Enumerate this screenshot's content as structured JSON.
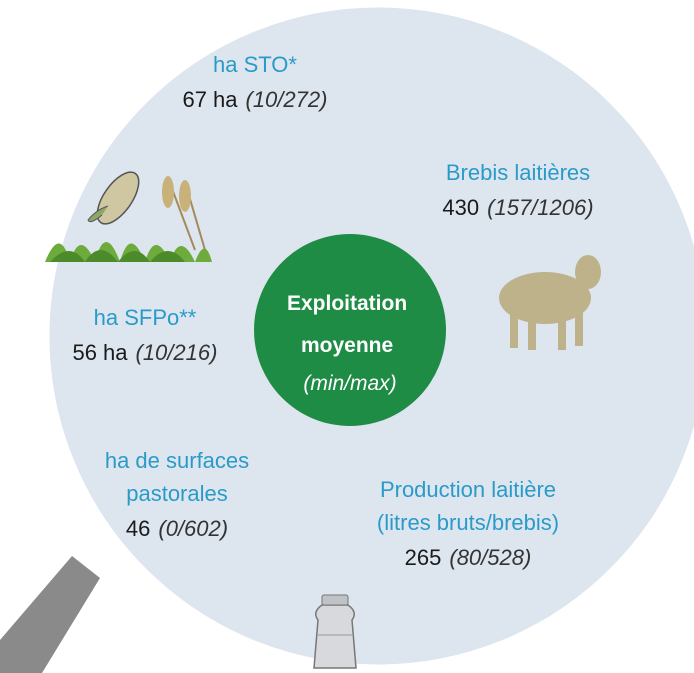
{
  "center": {
    "lines": [
      "Exploitation",
      "moyenne"
    ],
    "note": "(min/max)"
  },
  "items": [
    {
      "label_lines": [
        "ha STO*"
      ],
      "value": 67,
      "unit": "ha",
      "range": "(10/272)"
    },
    {
      "label_lines": [
        "Brebis laitières"
      ],
      "value": 430,
      "range": "(157/1206)"
    },
    {
      "label_lines": [
        "ha SFPo**"
      ],
      "value": 56,
      "unit": "ha",
      "range": "(10/216)"
    },
    {
      "label_lines": [
        "ha de surfaces",
        "pastorales"
      ],
      "value": 46,
      "range": "(0/602)"
    },
    {
      "label_lines": [
        "Production laitière",
        "(litres bruts/brebis)"
      ],
      "value": 265,
      "range": "(80/528)"
    }
  ]
}
